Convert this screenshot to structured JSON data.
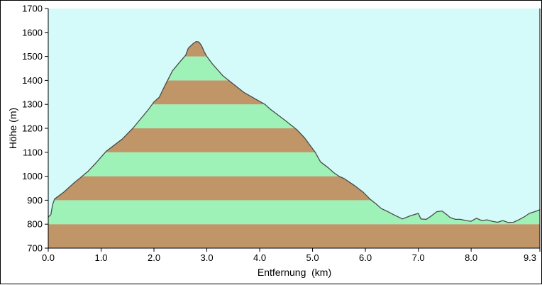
{
  "chart_data": {
    "type": "area",
    "xlabel": "Entfernung  (km)",
    "ylabel": "Höhe (m)",
    "xlim": [
      0,
      9.3
    ],
    "ylim": [
      700,
      1700
    ],
    "x_ticks": [
      0,
      1,
      2,
      3,
      4,
      5,
      6,
      7,
      8,
      9.3
    ],
    "x_tick_labels": [
      "0.0",
      "1.0",
      "2.0",
      "3.0",
      "4.0",
      "5.0",
      "6.0",
      "7.0",
      "8.0",
      "9.3"
    ],
    "y_ticks": [
      700,
      800,
      900,
      1000,
      1100,
      1200,
      1300,
      1400,
      1500,
      1600,
      1700
    ],
    "y_tick_labels": [
      "700",
      "800",
      "900",
      "1000",
      "1100",
      "1200",
      "1300",
      "1400",
      "1500",
      "1600",
      "1700"
    ],
    "band_height": 100,
    "band_colors": [
      "#c09668",
      "#9ef2b8"
    ],
    "sky_color": "#d4fafa",
    "profile_color": "#4a4a4a",
    "profile": {
      "x": [
        0,
        0.05,
        0.08,
        0.12,
        0.2,
        0.3,
        0.4,
        0.5,
        0.6,
        0.75,
        0.9,
        1.0,
        1.1,
        1.25,
        1.4,
        1.5,
        1.6,
        1.75,
        1.9,
        2.0,
        2.1,
        2.2,
        2.35,
        2.5,
        2.6,
        2.65,
        2.7,
        2.75,
        2.8,
        2.85,
        2.9,
        2.95,
        3.0,
        3.05,
        3.1,
        3.2,
        3.3,
        3.5,
        3.7,
        3.9,
        4.1,
        4.2,
        4.35,
        4.5,
        4.7,
        4.85,
        4.95,
        5.05,
        5.15,
        5.3,
        5.4,
        5.5,
        5.6,
        5.8,
        5.95,
        6.1,
        6.2,
        6.3,
        6.4,
        6.55,
        6.7,
        6.85,
        7.0,
        7.05,
        7.15,
        7.25,
        7.35,
        7.45,
        7.55,
        7.6,
        7.7,
        7.8,
        7.9,
        8.0,
        8.1,
        8.2,
        8.3,
        8.4,
        8.5,
        8.6,
        8.7,
        8.8,
        8.9,
        9.0,
        9.1,
        9.2,
        9.3
      ],
      "y": [
        830,
        840,
        880,
        905,
        918,
        935,
        955,
        975,
        992,
        1020,
        1055,
        1080,
        1105,
        1130,
        1155,
        1178,
        1200,
        1240,
        1280,
        1310,
        1330,
        1375,
        1440,
        1480,
        1505,
        1535,
        1545,
        1555,
        1562,
        1560,
        1545,
        1520,
        1500,
        1485,
        1470,
        1445,
        1420,
        1385,
        1350,
        1325,
        1300,
        1280,
        1255,
        1230,
        1195,
        1160,
        1130,
        1100,
        1060,
        1035,
        1015,
        1000,
        990,
        960,
        935,
        902,
        885,
        865,
        855,
        838,
        822,
        835,
        845,
        822,
        820,
        835,
        852,
        855,
        838,
        828,
        820,
        820,
        815,
        812,
        825,
        815,
        818,
        812,
        808,
        815,
        807,
        808,
        818,
        830,
        845,
        852,
        860
      ]
    }
  }
}
